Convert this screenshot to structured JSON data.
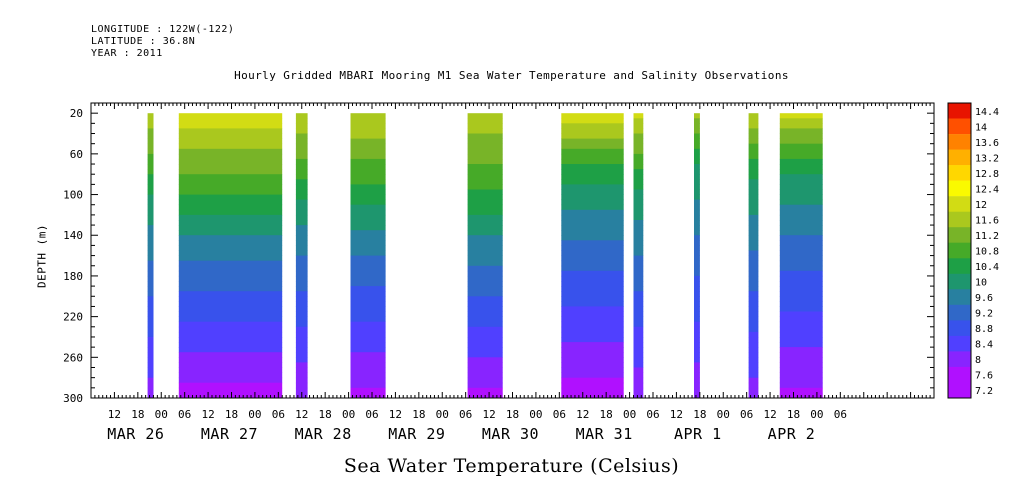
{
  "header": {
    "longitude": "LONGITUDE : 122W(-122)",
    "latitude": "LATITUDE : 36.8N",
    "year": "YEAR : 2011"
  },
  "chart_data": {
    "type": "heatmap",
    "title": "Hourly Gridded MBARI Mooring M1 Sea Water Temperature and Salinity Observations",
    "xlabel": "Sea Water Temperature (Celsius)",
    "ylabel": "DEPTH (m)",
    "x_unit": "hours since MAR 26 00",
    "xlim": [
      6,
      222
    ],
    "ylim": [
      300,
      10
    ],
    "y_ticks": [
      20,
      60,
      100,
      140,
      180,
      220,
      260,
      300
    ],
    "x_hour_ticks": [
      "12",
      "18",
      "00",
      "06",
      "12",
      "18",
      "00",
      "06",
      "12",
      "18",
      "00",
      "06",
      "12",
      "18",
      "00",
      "06",
      "12",
      "18",
      "00",
      "06",
      "12",
      "18",
      "00",
      "06",
      "12",
      "18",
      "00",
      "06",
      "12",
      "18",
      "00",
      "06"
    ],
    "x_day_labels": [
      "MAR 26",
      "MAR 27",
      "MAR 28",
      "MAR 29",
      "MAR 30",
      "MAR 31",
      "APR  1",
      "APR  2"
    ],
    "colorbar": {
      "labels": [
        "14.4",
        "14",
        "13.6",
        "13.2",
        "12.8",
        "12.4",
        "12",
        "11.6",
        "11.2",
        "10.8",
        "10.4",
        "10",
        "9.6",
        "9.2",
        "8.8",
        "8.4",
        "8",
        "7.6",
        "7.2"
      ],
      "min": 7.2,
      "max": 14.4,
      "step": 0.4
    },
    "data_segments": [
      {
        "start": 20.5,
        "end": 22,
        "surface_temp": 11.5,
        "thermocline_depth": 90,
        "bottom_temp": 7.8
      },
      {
        "start": 28.5,
        "end": 55,
        "surface_temp": 11.9,
        "thermocline_depth": 110,
        "bottom_temp": 7.4
      },
      {
        "start": 58.5,
        "end": 61.5,
        "surface_temp": 11.6,
        "thermocline_depth": 95,
        "bottom_temp": 7.6
      },
      {
        "start": 72.5,
        "end": 81.5,
        "surface_temp": 11.6,
        "thermocline_depth": 100,
        "bottom_temp": 7.5
      },
      {
        "start": 102.5,
        "end": 111.5,
        "surface_temp": 11.5,
        "thermocline_depth": 110,
        "bottom_temp": 7.5
      },
      {
        "start": 126.5,
        "end": 142.5,
        "surface_temp": 11.8,
        "thermocline_depth": 80,
        "bottom_temp": 7.4
      },
      {
        "start": 145,
        "end": 147.5,
        "surface_temp": 11.7,
        "thermocline_depth": 85,
        "bottom_temp": 7.7
      },
      {
        "start": 160.5,
        "end": 162,
        "surface_temp": 11.4,
        "thermocline_depth": 60,
        "bottom_temp": 7.7
      },
      {
        "start": 174.5,
        "end": 177,
        "surface_temp": 11.5,
        "thermocline_depth": 75,
        "bottom_temp": 7.8
      },
      {
        "start": 182.5,
        "end": 193.5,
        "surface_temp": 11.7,
        "thermocline_depth": 70,
        "bottom_temp": 7.5
      }
    ]
  }
}
